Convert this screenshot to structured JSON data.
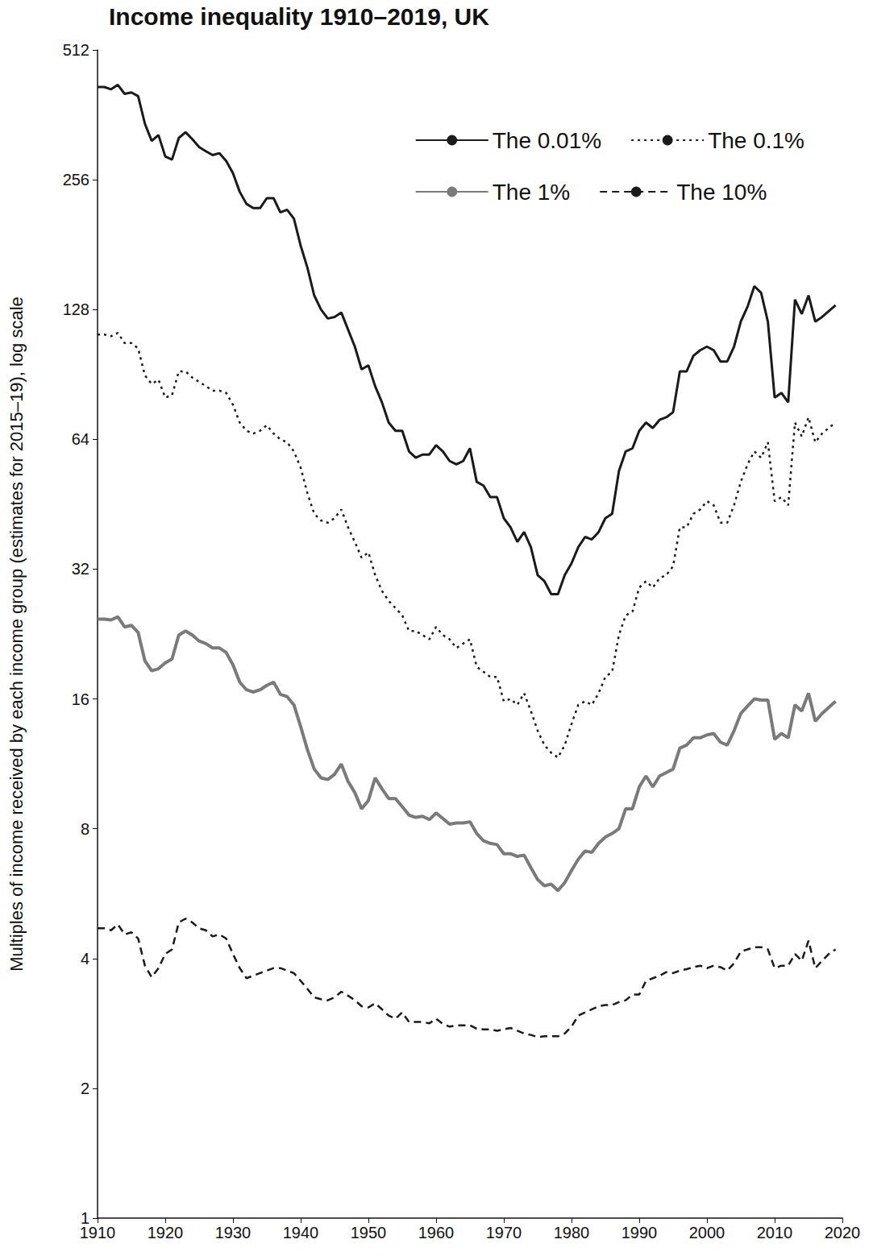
{
  "chart_data": {
    "type": "line",
    "title": "Income inequality 1910–2019, UK",
    "y_label": "Multiples of income received by each income group (estimates for 2015–19), log scale",
    "log": "y",
    "grid": false,
    "legend": "upper right",
    "xlim": [
      1910,
      2020
    ],
    "xticks": [
      1910,
      1920,
      1930,
      1940,
      1950,
      1960,
      1970,
      1980,
      1990,
      2000,
      2010,
      2020
    ],
    "ylim": [
      1,
      512
    ],
    "yticks": [
      1,
      2,
      4,
      8,
      16,
      32,
      64,
      128,
      256,
      512
    ],
    "x": [
      1910,
      1911,
      1912,
      1913,
      1914,
      1915,
      1916,
      1917,
      1918,
      1919,
      1920,
      1921,
      1922,
      1923,
      1924,
      1925,
      1926,
      1927,
      1928,
      1929,
      1930,
      1931,
      1932,
      1933,
      1934,
      1935,
      1936,
      1937,
      1938,
      1939,
      1940,
      1941,
      1942,
      1943,
      1944,
      1945,
      1946,
      1947,
      1948,
      1949,
      1950,
      1951,
      1952,
      1953,
      1954,
      1955,
      1956,
      1957,
      1958,
      1959,
      1960,
      1961,
      1962,
      1963,
      1964,
      1965,
      1966,
      1967,
      1968,
      1969,
      1970,
      1971,
      1972,
      1973,
      1974,
      1975,
      1976,
      1977,
      1978,
      1979,
      1980,
      1981,
      1982,
      1983,
      1984,
      1985,
      1986,
      1987,
      1988,
      1989,
      1990,
      1991,
      1992,
      1993,
      1994,
      1995,
      1996,
      1997,
      1998,
      1999,
      2000,
      2001,
      2002,
      2003,
      2004,
      2005,
      2006,
      2007,
      2008,
      2009,
      2010,
      2011,
      2012,
      2013,
      2014,
      2015,
      2016,
      2017,
      2018,
      2019
    ],
    "series": [
      {
        "name": "The 0.01%",
        "color": "#1a1a1a",
        "line_style": "solid",
        "values": [
          420,
          420,
          415,
          425,
          405,
          408,
          400,
          345,
          315,
          325,
          290,
          285,
          320,
          330,
          318,
          305,
          298,
          292,
          295,
          283,
          265,
          240,
          225,
          220,
          220,
          232,
          232,
          215,
          218,
          208,
          180,
          160,
          138,
          128,
          122,
          123,
          126,
          115,
          105,
          93,
          95,
          85,
          78,
          70,
          67,
          67,
          60,
          58,
          59,
          59,
          62,
          60,
          57,
          56,
          57,
          61,
          51,
          50,
          47,
          47,
          42,
          40,
          37,
          39,
          36,
          31,
          30,
          28,
          28,
          31,
          33,
          36,
          38,
          37.5,
          39,
          42,
          43,
          54,
          60,
          61,
          67,
          70,
          68,
          71,
          72,
          74,
          92,
          92,
          100,
          103,
          105,
          103,
          97,
          97,
          105,
          120,
          130,
          145,
          140,
          120,
          80,
          82,
          78,
          135,
          125,
          138,
          120,
          123,
          127,
          131
        ]
      },
      {
        "name": "The 0.1%",
        "color": "#1a1a1a",
        "line_style": "dotted",
        "values": [
          112,
          112,
          111,
          113,
          107,
          107,
          104,
          90,
          86,
          88,
          80,
          81,
          92,
          92,
          89,
          87,
          85,
          83,
          83,
          82,
          77,
          70,
          67,
          66,
          67,
          69,
          66,
          64,
          63,
          60,
          55,
          48,
          43,
          41.5,
          41,
          42,
          44,
          40,
          37,
          34,
          35,
          31,
          28.5,
          27,
          26,
          25,
          23,
          23,
          22.5,
          22,
          23.5,
          22.5,
          22,
          21,
          21.5,
          22,
          19,
          18.5,
          18,
          18,
          15.8,
          16,
          15.5,
          16.5,
          15,
          13.5,
          12.5,
          12,
          11.7,
          12.5,
          14,
          15.5,
          15.8,
          15.5,
          16.5,
          18,
          18.5,
          22.5,
          25,
          25.5,
          29,
          30,
          29,
          30.5,
          31,
          32.5,
          40,
          40,
          43,
          44,
          46,
          45,
          41,
          41,
          45,
          51,
          56,
          60,
          58,
          63,
          46,
          47,
          45,
          70,
          65,
          72,
          63,
          66,
          68,
          70
        ]
      },
      {
        "name": "The 1%",
        "color": "#7a7a7a",
        "line_style": "solid",
        "values": [
          24.5,
          24.5,
          24.4,
          24.8,
          23.5,
          23.7,
          22.8,
          19.6,
          18.6,
          18.8,
          19.4,
          19.8,
          22.5,
          23,
          22.5,
          21.8,
          21.5,
          21,
          21,
          20.5,
          19.2,
          17.5,
          16.8,
          16.6,
          16.8,
          17.2,
          17.5,
          16.4,
          16.2,
          15.5,
          13.8,
          12.2,
          11,
          10.5,
          10.4,
          10.7,
          11.3,
          10.3,
          9.7,
          8.9,
          9.3,
          10.5,
          9.9,
          9.4,
          9.4,
          9,
          8.6,
          8.5,
          8.55,
          8.4,
          8.7,
          8.45,
          8.2,
          8.25,
          8.25,
          8.3,
          7.8,
          7.5,
          7.4,
          7.35,
          7,
          7,
          6.9,
          6.95,
          6.5,
          6.1,
          5.9,
          5.95,
          5.75,
          6,
          6.4,
          6.8,
          7.1,
          7.05,
          7.4,
          7.65,
          7.8,
          8,
          8.9,
          8.9,
          10,
          10.6,
          10,
          10.6,
          10.8,
          11,
          12.3,
          12.5,
          13,
          13,
          13.2,
          13.3,
          12.7,
          12.5,
          13.5,
          14.8,
          15.4,
          16,
          15.9,
          15.9,
          12.9,
          13.3,
          13,
          15.5,
          15,
          16.5,
          14.2,
          14.8,
          15.3,
          15.8
        ]
      },
      {
        "name": "The 10%",
        "color": "#1a1a1a",
        "line_style": "dashed",
        "values": [
          4.7,
          4.7,
          4.65,
          4.8,
          4.55,
          4.6,
          4.45,
          3.85,
          3.62,
          3.8,
          4.1,
          4.2,
          4.85,
          4.95,
          4.85,
          4.7,
          4.65,
          4.5,
          4.55,
          4.45,
          4.1,
          3.8,
          3.6,
          3.65,
          3.7,
          3.75,
          3.8,
          3.8,
          3.75,
          3.7,
          3.55,
          3.4,
          3.25,
          3.22,
          3.2,
          3.25,
          3.35,
          3.28,
          3.2,
          3.1,
          3.08,
          3.15,
          3.05,
          2.95,
          2.9,
          3,
          2.85,
          2.85,
          2.85,
          2.83,
          2.9,
          2.82,
          2.78,
          2.8,
          2.8,
          2.8,
          2.75,
          2.74,
          2.74,
          2.72,
          2.74,
          2.76,
          2.72,
          2.68,
          2.66,
          2.63,
          2.64,
          2.64,
          2.64,
          2.68,
          2.78,
          2.95,
          3,
          3.05,
          3.1,
          3.12,
          3.12,
          3.17,
          3.2,
          3.3,
          3.3,
          3.55,
          3.6,
          3.65,
          3.72,
          3.7,
          3.75,
          3.78,
          3.82,
          3.85,
          3.8,
          3.85,
          3.82,
          3.75,
          3.9,
          4.15,
          4.2,
          4.25,
          4.25,
          4.2,
          3.8,
          3.85,
          3.85,
          4.1,
          3.95,
          4.4,
          3.8,
          3.95,
          4.1,
          4.2
        ]
      }
    ]
  }
}
